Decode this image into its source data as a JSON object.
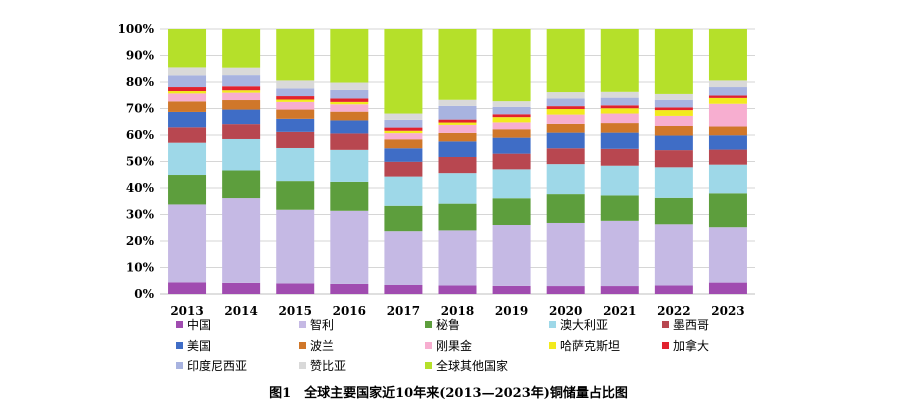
{
  "chart_data": {
    "type": "bar",
    "stacked": true,
    "percent": true,
    "title": "图1　全球主要国家近10年来(2013—2023年)铜储量占比图",
    "xlabel": "",
    "ylabel": "",
    "ylim": [
      0,
      100
    ],
    "yticks": [
      "0%",
      "10%",
      "20%",
      "30%",
      "40%",
      "50%",
      "60%",
      "70%",
      "80%",
      "90%",
      "100%"
    ],
    "categories": [
      "2013",
      "2014",
      "2015",
      "2016",
      "2017",
      "2018",
      "2019",
      "2020",
      "2021",
      "2022",
      "2023"
    ],
    "series": [
      {
        "name": "中国",
        "color": "#a04cb0",
        "values": [
          4.4,
          4.2,
          4.0,
          3.8,
          3.4,
          3.2,
          3.1,
          3.0,
          3.0,
          3.2,
          4.3
        ]
      },
      {
        "name": "智利",
        "color": "#c5b9e4",
        "values": [
          29.4,
          32.0,
          27.8,
          27.6,
          20.3,
          20.8,
          23.2,
          23.8,
          24.6,
          23.1,
          20.9
        ]
      },
      {
        "name": "秘鲁",
        "color": "#5d9e3d",
        "values": [
          11.1,
          10.4,
          10.8,
          10.9,
          9.6,
          10.1,
          10.2,
          10.9,
          9.6,
          10.0,
          12.8
        ]
      },
      {
        "name": "澳大利亚",
        "color": "#9ed8e8",
        "values": [
          12.2,
          11.9,
          12.5,
          12.1,
          11.0,
          11.5,
          11.0,
          11.3,
          11.2,
          11.5,
          10.8
        ]
      },
      {
        "name": "墨西哥",
        "color": "#b84750",
        "values": [
          5.8,
          5.6,
          6.1,
          6.2,
          5.6,
          6.1,
          6.0,
          6.0,
          6.4,
          6.5,
          5.7
        ]
      },
      {
        "name": "美国",
        "color": "#3f6dc6",
        "values": [
          5.8,
          5.5,
          4.9,
          4.9,
          5.1,
          5.9,
          6.1,
          5.9,
          6.1,
          5.5,
          5.4
        ]
      },
      {
        "name": "波兰",
        "color": "#d0772a",
        "values": [
          4.0,
          3.6,
          3.5,
          3.3,
          3.4,
          3.2,
          3.2,
          3.3,
          3.6,
          3.6,
          3.3
        ]
      },
      {
        "name": "刚果金",
        "color": "#f7aed0",
        "values": [
          3.0,
          2.8,
          2.9,
          2.8,
          2.3,
          3.0,
          2.6,
          3.5,
          3.6,
          3.8,
          8.6
        ]
      },
      {
        "name": "哈萨克斯坦",
        "color": "#f2ea1e",
        "values": [
          0.9,
          0.9,
          0.9,
          0.9,
          0.9,
          0.9,
          2.0,
          2.1,
          2.0,
          2.2,
          2.2
        ]
      },
      {
        "name": "加拿大",
        "color": "#e2222e",
        "values": [
          1.5,
          1.5,
          1.3,
          1.3,
          1.2,
          1.1,
          1.1,
          1.1,
          1.1,
          1.0,
          0.9
        ]
      },
      {
        "name": "印度尼西亚",
        "color": "#a8b3e0",
        "values": [
          4.4,
          4.2,
          2.9,
          3.2,
          2.9,
          5.2,
          2.8,
          2.9,
          2.9,
          2.9,
          3.2
        ]
      },
      {
        "name": "赞比亚",
        "color": "#d9d9d9",
        "values": [
          3.0,
          2.8,
          3.0,
          2.8,
          2.4,
          2.3,
          2.2,
          2.4,
          2.2,
          2.2,
          2.5
        ]
      },
      {
        "name": "全球其他国家",
        "color": "#b5e02a",
        "values": [
          14.5,
          14.6,
          19.4,
          20.2,
          31.9,
          26.7,
          27.5,
          23.8,
          23.7,
          24.5,
          19.4
        ]
      }
    ]
  }
}
